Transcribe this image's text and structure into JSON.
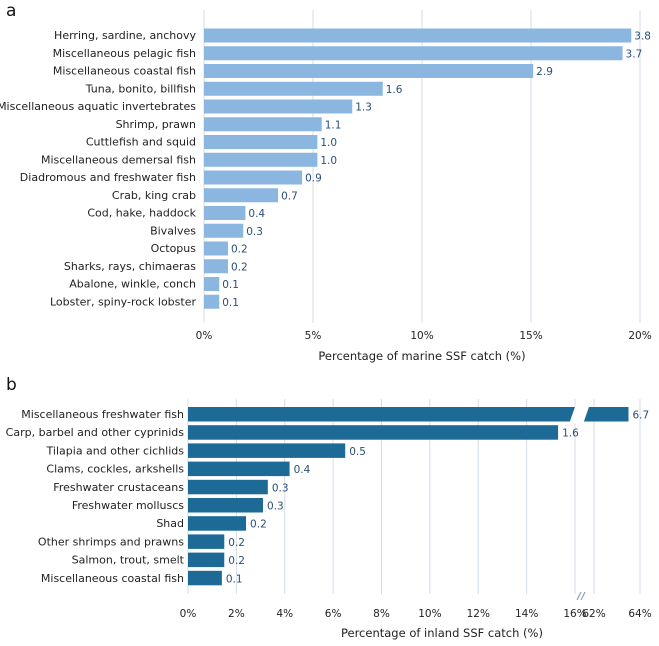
{
  "chart_data": [
    {
      "panel_label": "a",
      "type": "bar",
      "orientation": "horizontal",
      "categories": [
        "Herring, sardine, anchovy",
        "Miscellaneous pelagic fish",
        "Miscellaneous coastal fish",
        "Tuna, bonito, billfish",
        "Miscellaneous aquatic invertebrates",
        "Shrimp, prawn",
        "Cuttlefish and squid",
        "Miscellaneous demersal fish",
        "Diadromous and freshwater fish",
        "Crab, king crab",
        "Cod, hake, haddock",
        "Bivalves",
        "Octopus",
        "Sharks, rays, chimaeras",
        "Abalone, winkle, conch",
        "Lobster, spiny-rock lobster"
      ],
      "values": [
        19.6,
        19.2,
        15.1,
        8.2,
        6.8,
        5.4,
        5.2,
        5.2,
        4.5,
        3.4,
        1.9,
        1.8,
        1.1,
        1.1,
        0.7,
        0.7
      ],
      "value_labels": [
        "3.8",
        "3.7",
        "2.9",
        "1.6",
        "1.3",
        "1.1",
        "1.0",
        "1.0",
        "0.9",
        "0.7",
        "0.4",
        "0.3",
        "0.2",
        "0.2",
        "0.1",
        "0.1"
      ],
      "xlim": [
        0,
        20
      ],
      "xticks": [
        0,
        5,
        10,
        15,
        20
      ],
      "xtick_labels": [
        "0%",
        "5%",
        "10%",
        "15%",
        "20%"
      ],
      "xlabel": "Percentage of marine SSF catch (%)",
      "grid": true,
      "bar_color": "#8ab6e0"
    },
    {
      "panel_label": "b",
      "type": "bar",
      "orientation": "horizontal",
      "axis_break": {
        "between": [
          16,
          62
        ],
        "note": "broken x-axis"
      },
      "categories": [
        "Miscellaneous freshwater fish",
        "Carp, barbel and other cyprinids",
        "Tilapia and other cichlids",
        "Clams, cockles, arkshells",
        "Freshwater crustaceans",
        "Freshwater molluscs",
        "Shad",
        "Other shrimps and prawns",
        "Salmon, trout, smelt",
        "Miscellaneous coastal fish"
      ],
      "values": [
        63.5,
        15.3,
        6.5,
        4.2,
        3.3,
        3.1,
        2.4,
        1.5,
        1.5,
        1.4
      ],
      "value_labels": [
        "6.7",
        "1.6",
        "0.5",
        "0.4",
        "0.3",
        "0.3",
        "0.2",
        "0.2",
        "0.2",
        "0.1"
      ],
      "xlim": [
        0,
        64
      ],
      "xticks": [
        0,
        2,
        4,
        6,
        8,
        10,
        12,
        14,
        16,
        62,
        64
      ],
      "xtick_labels": [
        "0%",
        "2%",
        "4%",
        "6%",
        "8%",
        "10%",
        "12%",
        "14%",
        "16%",
        "62%",
        "64%"
      ],
      "xlabel": "Percentage of inland SSF catch (%)",
      "grid": true,
      "bar_color": "#1d6a96"
    }
  ]
}
